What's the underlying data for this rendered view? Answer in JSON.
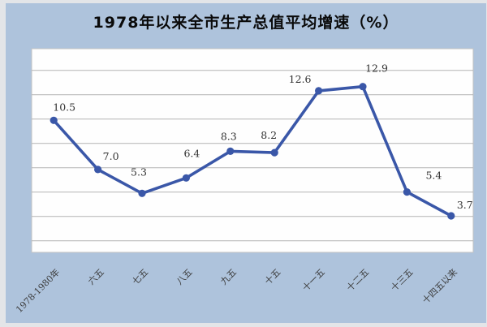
{
  "chart_data": {
    "type": "line",
    "title": "1978年以来全市生产总值平均增速（%）",
    "categories": [
      "1978-1980年",
      "六五",
      "七五",
      "八五",
      "九五",
      "十五",
      "十一五",
      "十二五",
      "十三五",
      "十四五以来"
    ],
    "values": [
      10.5,
      7.0,
      5.3,
      6.4,
      8.3,
      8.2,
      12.6,
      12.9,
      5.4,
      3.7
    ],
    "point_labels": [
      "10.5",
      "7.0",
      "5.3",
      "6.4",
      "8.3",
      "8.2",
      "12.6",
      "12.9",
      "5.4",
      "3.7"
    ],
    "xlabel": "",
    "ylabel": "",
    "ylim": [
      1.1,
      15.6
    ],
    "grid": true,
    "legend": "none",
    "x_tick_rotation_deg": -45
  },
  "colors": {
    "card_background": "#aec3dc",
    "plot_background": "#fefefe",
    "series_line": "#3a57a8",
    "gridline": "#b3b3b3",
    "title_text": "#0a0a0a",
    "label_text": "#333333"
  }
}
